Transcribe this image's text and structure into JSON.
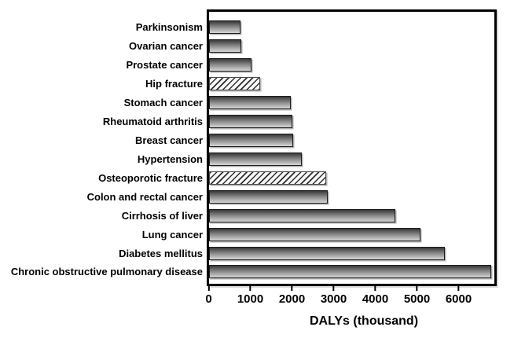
{
  "chart_data": {
    "type": "bar",
    "orientation": "horizontal",
    "xlabel": "DALYs (thousand)",
    "ylabel": "",
    "title": "",
    "categories": [
      "Parkinsonism",
      "Ovarian cancer",
      "Prostate cancer",
      "Hip fracture",
      "Stomach cancer",
      "Rheumatoid arthritis",
      "Breast cancer",
      "Hypertension",
      "Osteoporotic fracture",
      "Colon and rectal cancer",
      "Cirrhosis of liver",
      "Lung cancer",
      "Diabetes mellitus",
      "Chronic obstructive pulmonary disease"
    ],
    "values": [
      750,
      780,
      1010,
      1230,
      1970,
      2000,
      2020,
      2220,
      2810,
      2850,
      4480,
      5080,
      5660,
      6770
    ],
    "patterns": [
      "solid",
      "solid",
      "solid",
      "hatched",
      "solid",
      "solid",
      "solid",
      "solid",
      "hatched",
      "solid",
      "solid",
      "solid",
      "solid",
      "solid"
    ],
    "x_ticks": [
      0,
      1000,
      2000,
      3000,
      4000,
      5000,
      6000
    ],
    "xlim": [
      0,
      6900
    ],
    "grid": false,
    "legend_position": "none",
    "colors": {
      "bar_gradient_top": "#383838",
      "bar_gradient_bottom": "#d6d6d6",
      "hatch_stripe": "#2e2e2e",
      "hatch_background": "#f7f7f7",
      "frame": "#000000",
      "text": "#000000",
      "background": "#ffffff"
    }
  }
}
